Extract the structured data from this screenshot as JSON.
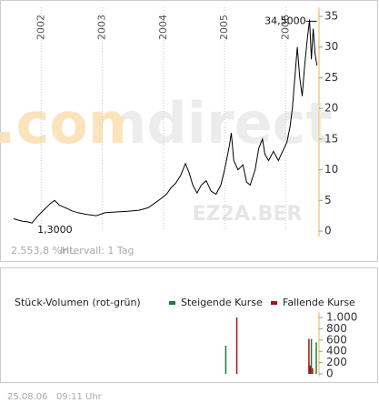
{
  "chart_data": [
    {
      "type": "line",
      "watermark": ".comdirect",
      "symbol": "EZ2A.BER",
      "footnote": [
        "2.553,8 %HL",
        "Intervall: 1 Tag"
      ],
      "color": "#000000",
      "x": [
        2001.55,
        2001.62,
        2001.7,
        2001.78,
        2001.85,
        2001.95,
        2002.05,
        2002.15,
        2002.22,
        2002.3,
        2002.4,
        2002.5,
        2002.6,
        2002.75,
        2002.9,
        2003.05,
        2003.2,
        2003.4,
        2003.6,
        2003.75,
        2003.85,
        2003.95,
        2004.05,
        2004.12,
        2004.2,
        2004.28,
        2004.36,
        2004.42,
        2004.48,
        2004.55,
        2004.62,
        2004.7,
        2004.78,
        2004.86,
        2004.94,
        2005.0,
        2005.04,
        2005.08,
        2005.11,
        2005.15,
        2005.22,
        2005.3,
        2005.36,
        2005.42,
        2005.5,
        2005.56,
        2005.62,
        2005.66,
        2005.72,
        2005.8,
        2005.88,
        2005.95,
        2006.02,
        2006.07,
        2006.11,
        2006.15,
        2006.19,
        2006.23,
        2006.27,
        2006.31,
        2006.35,
        2006.39,
        2006.42,
        2006.45,
        2006.48,
        2006.51
      ],
      "values": [
        2.0,
        1.8,
        1.6,
        1.5,
        1.3,
        2.5,
        3.5,
        4.5,
        5.0,
        4.2,
        3.8,
        3.3,
        3.0,
        2.7,
        2.5,
        3.0,
        3.1,
        3.2,
        3.4,
        3.8,
        4.5,
        5.2,
        6.0,
        7.0,
        7.8,
        9.0,
        11.0,
        9.5,
        7.5,
        6.2,
        7.5,
        8.2,
        6.5,
        6.0,
        7.5,
        10.0,
        12.0,
        14.0,
        16.0,
        11.5,
        10.0,
        10.8,
        8.0,
        7.5,
        10.0,
        13.5,
        15.0,
        12.5,
        11.5,
        13.0,
        11.5,
        13.0,
        14.5,
        17.0,
        20.0,
        25.0,
        30.0,
        25.0,
        22.0,
        27.0,
        31.0,
        34.5,
        28.0,
        33.0,
        29.0,
        27.0
      ],
      "annotations": [
        {
          "text": "34,5000",
          "x": 2006.39,
          "y": 34.5
        },
        {
          "text": "1,3000",
          "x": 2001.85,
          "y": 1.3
        }
      ],
      "xlim": [
        2001.55,
        2006.53
      ],
      "xticks": [
        2002,
        2003,
        2004,
        2005,
        2006
      ],
      "ylim": [
        0,
        35
      ],
      "yticks": [
        0,
        5,
        10,
        15,
        20,
        25,
        30,
        35
      ],
      "grid": true
    },
    {
      "type": "bar",
      "title": "Stück-Volumen (rot-grün)",
      "series": [
        {
          "name": "Steigende Kurse",
          "color": "#1a7a3a",
          "x": [
            2005.02,
            2006.42,
            2006.5
          ],
          "values": [
            500,
            620,
            560
          ]
        },
        {
          "name": "Fallende Kurse",
          "color": "#b01010",
          "x": [
            2005.2,
            2006.38,
            2006.4,
            2006.44
          ],
          "values": [
            1000,
            620,
            150,
            100
          ]
        }
      ],
      "xlim": [
        2001.55,
        2006.53
      ],
      "ylim": [
        0,
        1000
      ],
      "yticks": [
        0,
        200,
        400,
        600,
        800,
        {
          "value": 1000,
          "label": "1.000"
        }
      ]
    }
  ],
  "footer": [
    "25.08.06",
    "09:11 Uhr"
  ]
}
